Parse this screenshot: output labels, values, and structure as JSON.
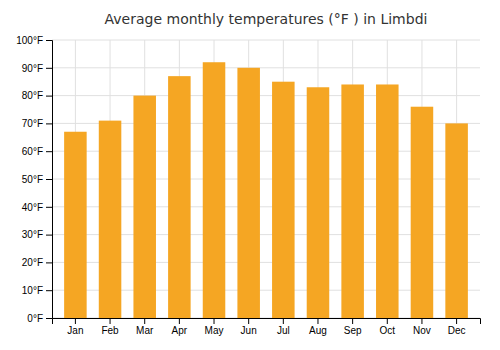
{
  "chart_data": {
    "type": "bar",
    "title": "Average monthly temperatures (°F ) in Limbdi",
    "categories": [
      "Jan",
      "Feb",
      "Mar",
      "Apr",
      "May",
      "Jun",
      "Jul",
      "Aug",
      "Sep",
      "Oct",
      "Nov",
      "Dec"
    ],
    "values": [
      67,
      71,
      80,
      87,
      92,
      90,
      85,
      83,
      84,
      84,
      76,
      70
    ],
    "color": "#F5A623",
    "ylim": [
      0,
      100
    ],
    "yticks": [
      {
        "value": 0,
        "label": "0°F"
      },
      {
        "value": 10,
        "label": "10°F"
      },
      {
        "value": 20,
        "label": "20°F"
      },
      {
        "value": 30,
        "label": "30°F"
      },
      {
        "value": 40,
        "label": "40°F"
      },
      {
        "value": 50,
        "label": "50°F"
      },
      {
        "value": 60,
        "label": "60°F"
      },
      {
        "value": 70,
        "label": "70°F"
      },
      {
        "value": 80,
        "label": "80°F"
      },
      {
        "value": 90,
        "label": "90°F"
      },
      {
        "value": 100,
        "label": "100°F"
      }
    ],
    "grid": true
  }
}
